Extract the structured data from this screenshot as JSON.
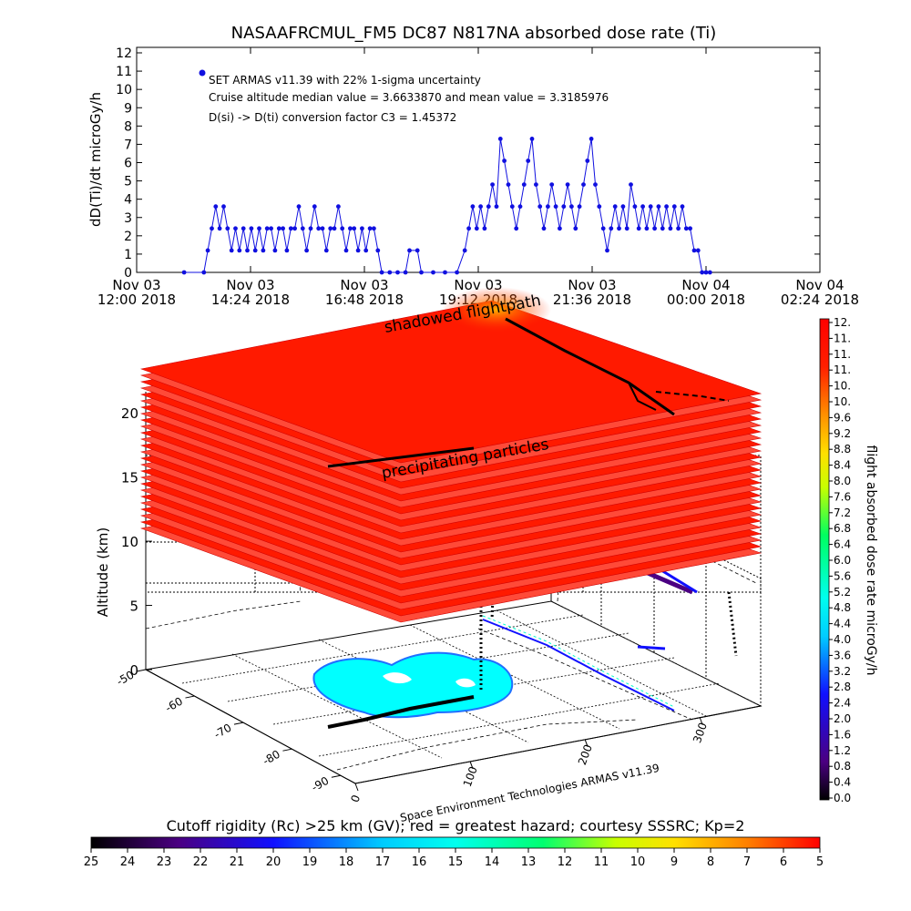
{
  "chart_data": [
    {
      "type": "scatter",
      "title": "NASAAFRCMUL_FM5 DC87 N817NA absorbed dose rate (Ti)",
      "ylabel": "dD(Ti)/dt microGy/h",
      "ylim": [
        0,
        12
      ],
      "yticks": [
        "0",
        "1",
        "2",
        "3",
        "4",
        "5",
        "6",
        "7",
        "8",
        "9",
        "10",
        "11",
        "12"
      ],
      "xticks": [
        {
          "line1": "Nov 03",
          "line2": "12:00 2018"
        },
        {
          "line1": "Nov 03",
          "line2": "14:24 2018"
        },
        {
          "line1": "Nov 03",
          "line2": "16:48 2018"
        },
        {
          "line1": "Nov 03",
          "line2": "19:12 2018"
        },
        {
          "line1": "Nov 03",
          "line2": "21:36 2018"
        },
        {
          "line1": "Nov 04",
          "line2": "00:00 2018"
        },
        {
          "line1": "Nov 04",
          "line2": "02:24 2018"
        }
      ],
      "xlim": [
        "2018-11-03 12:00",
        "2018-11-04 02:24"
      ],
      "legend": {
        "label": "SET ARMAS v11.39 with 22% 1-sigma uncertainty",
        "info1": "Cruise altitude median value = 3.6633870 and mean value = 3.3185976",
        "info2": "D(si) -> D(ti) conversion factor C3 = 1.45372",
        "placement": "top-left"
      },
      "series": [
        {
          "color": "#1010e0",
          "points": [
            [
              "2018-11-03 13:00",
              0
            ],
            [
              "2018-11-03 13:25",
              0
            ],
            [
              "2018-11-03 13:30",
              1.2
            ],
            [
              "2018-11-03 13:35",
              2.4
            ],
            [
              "2018-11-03 13:40",
              3.6
            ],
            [
              "2018-11-03 13:45",
              2.4
            ],
            [
              "2018-11-03 13:50",
              3.6
            ],
            [
              "2018-11-03 13:55",
              2.4
            ],
            [
              "2018-11-03 14:00",
              1.2
            ],
            [
              "2018-11-03 14:05",
              2.4
            ],
            [
              "2018-11-03 14:10",
              1.2
            ],
            [
              "2018-11-03 14:15",
              2.4
            ],
            [
              "2018-11-03 14:20",
              1.2
            ],
            [
              "2018-11-03 14:25",
              2.4
            ],
            [
              "2018-11-03 14:30",
              1.2
            ],
            [
              "2018-11-03 14:35",
              2.4
            ],
            [
              "2018-11-03 14:40",
              1.2
            ],
            [
              "2018-11-03 14:45",
              2.4
            ],
            [
              "2018-11-03 14:50",
              2.4
            ],
            [
              "2018-11-03 14:55",
              1.2
            ],
            [
              "2018-11-03 15:00",
              2.4
            ],
            [
              "2018-11-03 15:05",
              2.4
            ],
            [
              "2018-11-03 15:10",
              1.2
            ],
            [
              "2018-11-03 15:15",
              2.4
            ],
            [
              "2018-11-03 15:20",
              2.4
            ],
            [
              "2018-11-03 15:25",
              3.6
            ],
            [
              "2018-11-03 15:30",
              2.4
            ],
            [
              "2018-11-03 15:35",
              1.2
            ],
            [
              "2018-11-03 15:40",
              2.4
            ],
            [
              "2018-11-03 15:45",
              3.6
            ],
            [
              "2018-11-03 15:50",
              2.4
            ],
            [
              "2018-11-03 15:55",
              2.4
            ],
            [
              "2018-11-03 16:00",
              1.2
            ],
            [
              "2018-11-03 16:05",
              2.4
            ],
            [
              "2018-11-03 16:10",
              2.4
            ],
            [
              "2018-11-03 16:15",
              3.6
            ],
            [
              "2018-11-03 16:20",
              2.4
            ],
            [
              "2018-11-03 16:25",
              1.2
            ],
            [
              "2018-11-03 16:30",
              2.4
            ],
            [
              "2018-11-03 16:35",
              2.4
            ],
            [
              "2018-11-03 16:40",
              1.2
            ],
            [
              "2018-11-03 16:45",
              2.4
            ],
            [
              "2018-11-03 16:50",
              1.2
            ],
            [
              "2018-11-03 16:55",
              2.4
            ],
            [
              "2018-11-03 17:00",
              2.4
            ],
            [
              "2018-11-03 17:05",
              1.2
            ],
            [
              "2018-11-03 17:10",
              0
            ],
            [
              "2018-11-03 17:20",
              0
            ],
            [
              "2018-11-03 17:30",
              0
            ],
            [
              "2018-11-03 17:40",
              0
            ],
            [
              "2018-11-03 17:45",
              1.2
            ],
            [
              "2018-11-03 17:55",
              1.2
            ],
            [
              "2018-11-03 18:00",
              0
            ],
            [
              "2018-11-03 18:15",
              0
            ],
            [
              "2018-11-03 18:30",
              0
            ],
            [
              "2018-11-03 18:45",
              0
            ],
            [
              "2018-11-03 18:55",
              1.2
            ],
            [
              "2018-11-03 19:00",
              2.4
            ],
            [
              "2018-11-03 19:05",
              3.6
            ],
            [
              "2018-11-03 19:10",
              2.4
            ],
            [
              "2018-11-03 19:15",
              3.6
            ],
            [
              "2018-11-03 19:20",
              2.4
            ],
            [
              "2018-11-03 19:25",
              3.6
            ],
            [
              "2018-11-03 19:30",
              4.8
            ],
            [
              "2018-11-03 19:35",
              3.6
            ],
            [
              "2018-11-03 19:40",
              7.3
            ],
            [
              "2018-11-03 19:45",
              6.1
            ],
            [
              "2018-11-03 19:50",
              4.8
            ],
            [
              "2018-11-03 19:55",
              3.6
            ],
            [
              "2018-11-03 20:00",
              2.4
            ],
            [
              "2018-11-03 20:05",
              3.6
            ],
            [
              "2018-11-03 20:10",
              4.8
            ],
            [
              "2018-11-03 20:15",
              6.1
            ],
            [
              "2018-11-03 20:20",
              7.3
            ],
            [
              "2018-11-03 20:25",
              4.8
            ],
            [
              "2018-11-03 20:30",
              3.6
            ],
            [
              "2018-11-03 20:35",
              2.4
            ],
            [
              "2018-11-03 20:40",
              3.6
            ],
            [
              "2018-11-03 20:45",
              4.8
            ],
            [
              "2018-11-03 20:50",
              3.6
            ],
            [
              "2018-11-03 20:55",
              2.4
            ],
            [
              "2018-11-03 21:00",
              3.6
            ],
            [
              "2018-11-03 21:05",
              4.8
            ],
            [
              "2018-11-03 21:10",
              3.6
            ],
            [
              "2018-11-03 21:15",
              2.4
            ],
            [
              "2018-11-03 21:20",
              3.6
            ],
            [
              "2018-11-03 21:25",
              4.8
            ],
            [
              "2018-11-03 21:30",
              6.1
            ],
            [
              "2018-11-03 21:35",
              7.3
            ],
            [
              "2018-11-03 21:40",
              4.8
            ],
            [
              "2018-11-03 21:45",
              3.6
            ],
            [
              "2018-11-03 21:50",
              2.4
            ],
            [
              "2018-11-03 21:55",
              1.2
            ],
            [
              "2018-11-03 22:00",
              2.4
            ],
            [
              "2018-11-03 22:05",
              3.6
            ],
            [
              "2018-11-03 22:10",
              2.4
            ],
            [
              "2018-11-03 22:15",
              3.6
            ],
            [
              "2018-11-03 22:20",
              2.4
            ],
            [
              "2018-11-03 22:25",
              4.8
            ],
            [
              "2018-11-03 22:30",
              3.6
            ],
            [
              "2018-11-03 22:35",
              2.4
            ],
            [
              "2018-11-03 22:40",
              3.6
            ],
            [
              "2018-11-03 22:45",
              2.4
            ],
            [
              "2018-11-03 22:50",
              3.6
            ],
            [
              "2018-11-03 22:55",
              2.4
            ],
            [
              "2018-11-03 23:00",
              3.6
            ],
            [
              "2018-11-03 23:05",
              2.4
            ],
            [
              "2018-11-03 23:10",
              3.6
            ],
            [
              "2018-11-03 23:15",
              2.4
            ],
            [
              "2018-11-03 23:20",
              3.6
            ],
            [
              "2018-11-03 23:25",
              2.4
            ],
            [
              "2018-11-03 23:30",
              3.6
            ],
            [
              "2018-11-03 23:35",
              2.4
            ],
            [
              "2018-11-03 23:40",
              2.4
            ],
            [
              "2018-11-03 23:45",
              1.2
            ],
            [
              "2018-11-03 23:50",
              1.2
            ],
            [
              "2018-11-03 23:55",
              0
            ],
            [
              "2018-11-04 00:00",
              0
            ],
            [
              "2018-11-04 00:05",
              0
            ]
          ]
        }
      ]
    },
    {
      "type": "scatter",
      "zlabel": "Altitude (km)",
      "zticks": [
        "0",
        "5",
        "10",
        "15",
        "20"
      ],
      "zlim": [
        0,
        22
      ],
      "lat_ticks": [
        "-90",
        "-80",
        "-70",
        "-60",
        "-50"
      ],
      "lon_ticks": [
        "0",
        "100",
        "200",
        "300"
      ],
      "annotations": {
        "shadowed": "shadowed flightpath",
        "precip": "precipitating particles",
        "credit": "Space Environment Technologies ARMAS v11.39"
      },
      "rc_colorbar": {
        "title": "Cutoff rigidity (Rc) >25 km (GV); red = greatest hazard; courtesy SSSRC; Kp=2",
        "ticks": [
          "25",
          "24",
          "23",
          "22",
          "21",
          "20",
          "19",
          "18",
          "17",
          "16",
          "15",
          "14",
          "13",
          "12",
          "11",
          "10",
          "9",
          "8",
          "7",
          "6",
          "5"
        ]
      },
      "dose_colorbar": {
        "title": "flight absorbed dose rate microGy/h",
        "ticks": [
          "0.0",
          "0.4",
          "0.8",
          "1.2",
          "1.6",
          "2.0",
          "2.4",
          "2.8",
          "3.2",
          "3.6",
          "4.0",
          "4.4",
          "4.8",
          "5.2",
          "5.6",
          "6.0",
          "6.4",
          "6.8",
          "7.2",
          "7.6",
          "8.0",
          "8.4",
          "8.8",
          "9.2",
          "9.6",
          "10.",
          "10.",
          "11.",
          "11.",
          "11.",
          "12."
        ]
      },
      "colors": {
        "hazard_red": "#ff1a00",
        "cutoff_cyan": "#00ffff",
        "track": "#000000"
      }
    }
  ]
}
